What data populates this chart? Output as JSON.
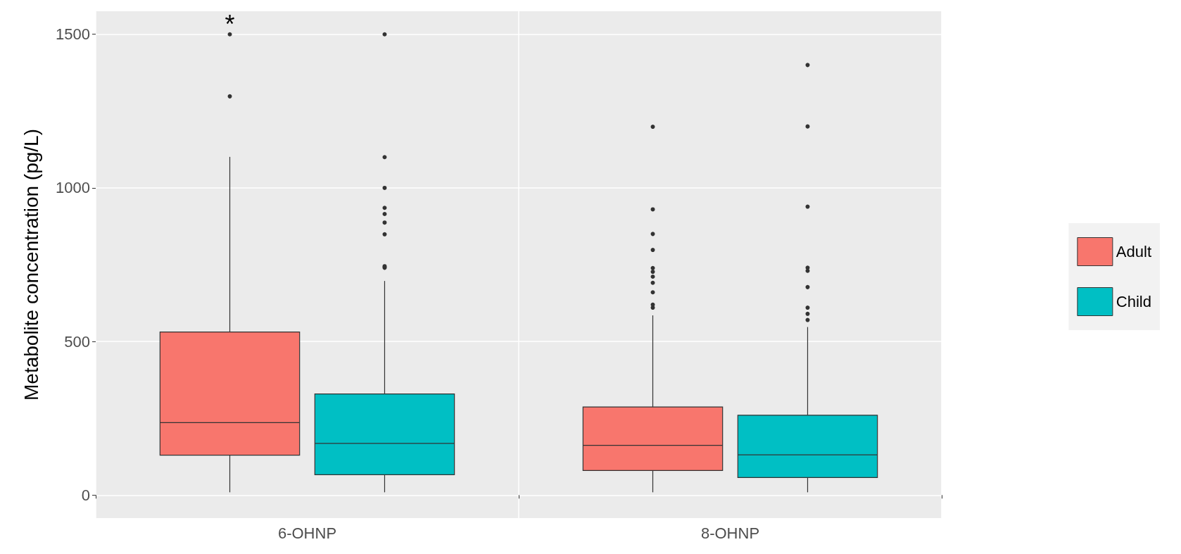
{
  "chart_data": {
    "type": "box",
    "ylabel": "Metabolite concentration (pg/L)",
    "categories": [
      "6-OHNP",
      "8-OHNP"
    ],
    "ylim": [
      -75,
      1575
    ],
    "yticks": [
      0,
      500,
      1000,
      1500
    ],
    "grid": true,
    "legend": "right",
    "series": [
      {
        "name": "Adult",
        "color": "#f8766d",
        "boxes": [
          {
            "low": 9,
            "q1": 130,
            "median": 236,
            "q3": 531,
            "high": 1101,
            "outliers": [
              1298,
              1500
            ]
          },
          {
            "low": 9,
            "q1": 80,
            "median": 162,
            "q3": 287,
            "high": 585,
            "outliers": [
              610,
              620,
              660,
              691,
              711,
              727,
              739,
              798,
              850,
              930,
              1199
            ]
          }
        ]
      },
      {
        "name": "Child",
        "color": "#00bfc4",
        "boxes": [
          {
            "low": 9,
            "q1": 66,
            "median": 168,
            "q3": 329,
            "high": 697,
            "outliers": [
              740,
              745,
              849,
              887,
              915,
              935,
              1000,
              1100,
              1500
            ]
          },
          {
            "low": 9,
            "q1": 57,
            "median": 131,
            "q3": 260,
            "high": 547,
            "outliers": [
              570,
              590,
              610,
              677,
              730,
              740,
              939,
              1200,
              1400
            ]
          }
        ]
      }
    ],
    "annotations": [
      "*"
    ]
  }
}
